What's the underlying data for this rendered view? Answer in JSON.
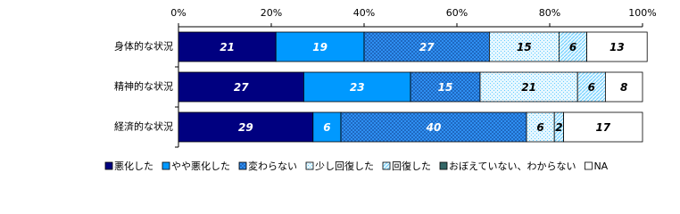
{
  "chart_data": {
    "type": "stacked-bar-horizontal",
    "categories": [
      "身体的な状況",
      "精神的な状況",
      "経済的な状況"
    ],
    "xlim": [
      0,
      100
    ],
    "xticks": [
      {
        "value": 0,
        "label": "0%"
      },
      {
        "value": 20,
        "label": "20%"
      },
      {
        "value": 40,
        "label": "40%"
      },
      {
        "value": 60,
        "label": "60%"
      },
      {
        "value": 80,
        "label": "80%"
      },
      {
        "value": 100,
        "label": "100%"
      }
    ],
    "legend": "bottom",
    "series": [
      {
        "name": "悪化した",
        "color": "#000080",
        "values": [
          21,
          27,
          29
        ]
      },
      {
        "name": "やや悪化した",
        "color": "#0099ff",
        "values": [
          19,
          23,
          6
        ]
      },
      {
        "name": "変わらない",
        "color": "#3399ff",
        "pattern": "crosshatch",
        "values": [
          27,
          15,
          40
        ]
      },
      {
        "name": "少し回復した",
        "color": "#66ccff",
        "pattern": "dots",
        "values": [
          15,
          21,
          6
        ]
      },
      {
        "name": "回復した",
        "color": "#66ccff",
        "pattern": "diagonal",
        "values": [
          6,
          6,
          2
        ]
      },
      {
        "name": "おぼえていない、わからない",
        "color": "#336666",
        "values": [
          0,
          0,
          0
        ]
      },
      {
        "name": "NA",
        "color": "#ffffff",
        "values": [
          13,
          8,
          17
        ]
      }
    ]
  }
}
